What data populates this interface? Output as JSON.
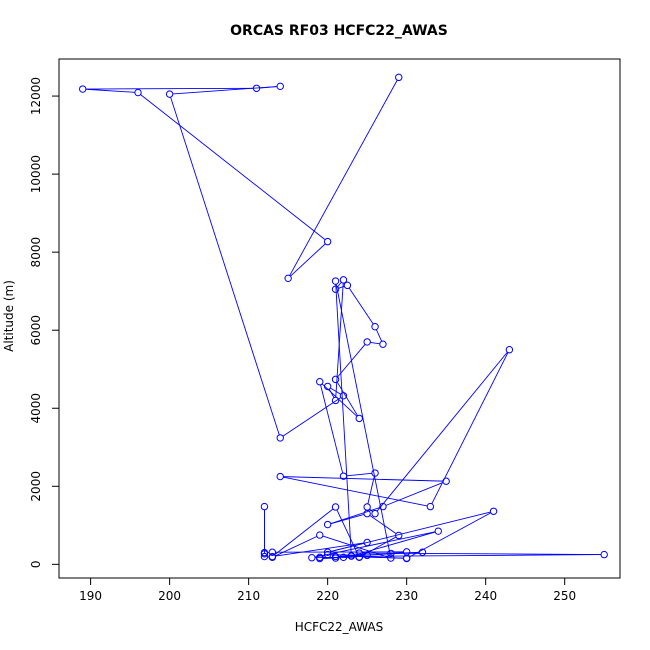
{
  "chart_data": {
    "type": "line",
    "title": "ORCAS RF03 HCFC22_AWAS",
    "xlabel": "HCFC22_AWAS",
    "ylabel": "Altitude (m)",
    "xlim": [
      186,
      257
    ],
    "ylim": [
      -350,
      12950
    ],
    "xticks": [
      190,
      200,
      210,
      220,
      230,
      240,
      250
    ],
    "yticks": [
      0,
      2000,
      4000,
      6000,
      8000,
      10000,
      12000
    ],
    "grid": false,
    "legend": "none",
    "markers": "open-circle",
    "colors": {
      "series": "#0000ff",
      "axes": "#000000"
    },
    "series": [
      {
        "x": [
          229,
          215,
          220,
          196,
          189,
          211,
          214,
          200,
          214,
          222,
          220,
          221,
          222,
          221,
          222.5,
          226,
          227,
          225,
          221,
          224,
          219,
          222,
          226,
          225,
          226,
          243,
          233,
          214,
          235,
          227,
          220,
          225,
          229,
          224,
          221,
          213,
          225,
          220,
          241,
          230,
          223,
          234,
          218,
          222,
          223,
          221,
          228,
          219,
          213,
          212,
          212,
          212,
          212,
          213,
          230,
          228,
          232,
          221,
          255,
          224,
          225,
          220,
          219,
          221,
          219,
          224,
          230
        ],
        "y": [
          12480,
          7330,
          8270,
          12090,
          12180,
          12200,
          12250,
          12050,
          3240,
          4320,
          4560,
          4200,
          7290,
          7050,
          7150,
          6090,
          5640,
          5700,
          4740,
          3740,
          4680,
          2260,
          2340,
          1470,
          1300,
          5500,
          1480,
          2250,
          2130,
          1480,
          1020,
          1300,
          740,
          180,
          1470,
          200,
          560,
          310,
          1360,
          150,
          210,
          850,
          170,
          180,
          220,
          7260,
          160,
          750,
          180,
          200,
          1480,
          270,
          300,
          310,
          320,
          280,
          310,
          200,
          250,
          290,
          230,
          250,
          180,
          160,
          150,
          190,
          160
        ]
      }
    ]
  }
}
